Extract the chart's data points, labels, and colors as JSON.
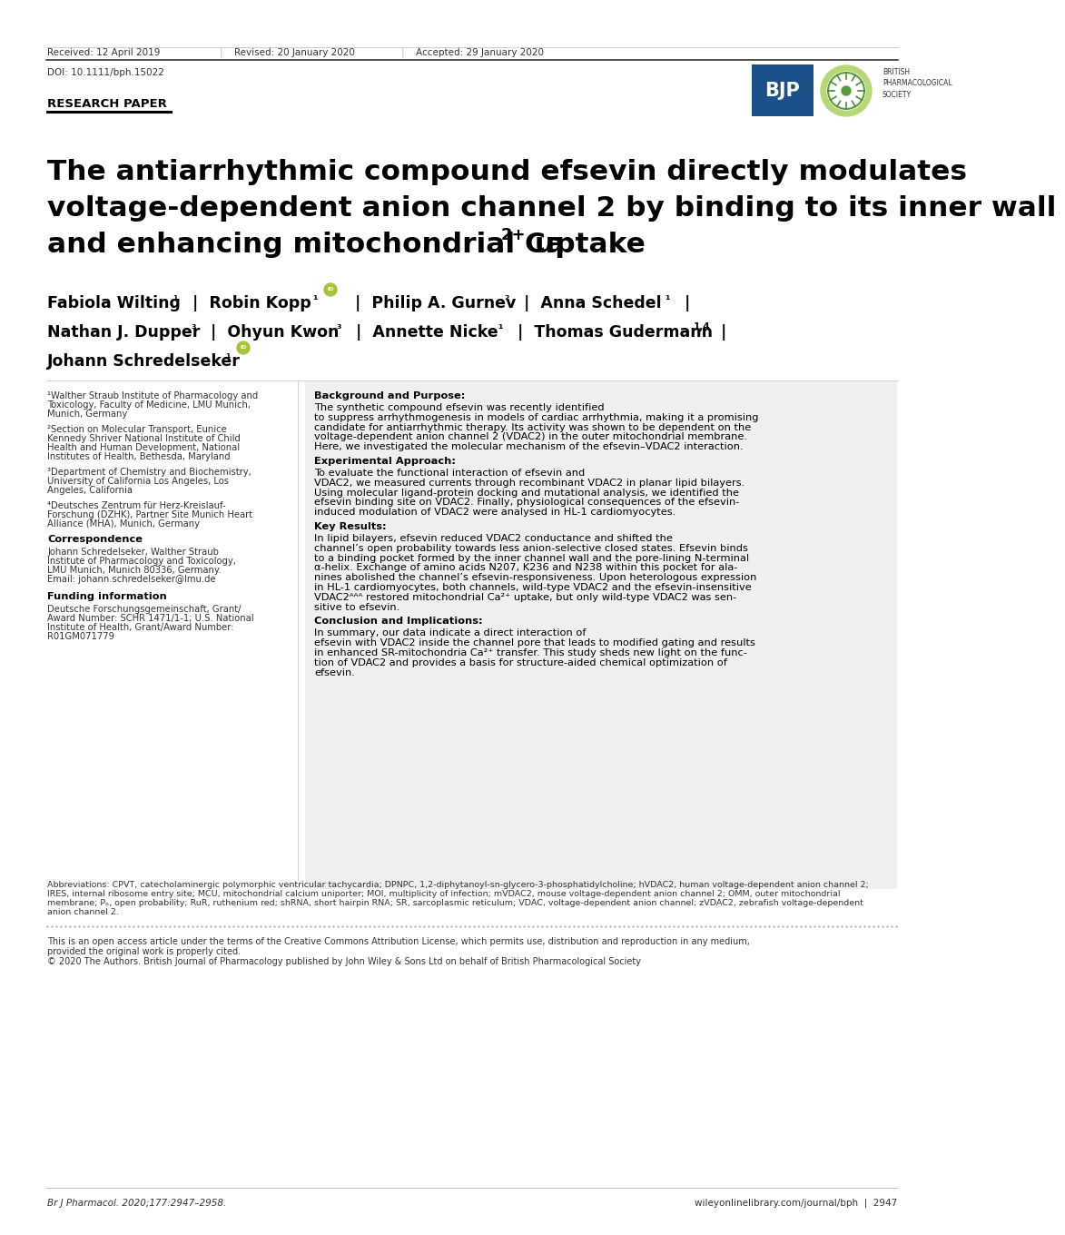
{
  "bg_color": "#ffffff",
  "doi": "DOI: 10.1111/bph.15022",
  "section_label": "RESEARCH PAPER",
  "title_line1": "The antiarrhythmic compound efsevin directly modulates",
  "title_line2": "voltage-dependent anion channel 2 by binding to its inner wall",
  "title_line3_main": "and enhancing mitochondrial Ca",
  "title_line3_super": "2+",
  "title_line3_after": " uptake",
  "affil1": "¹Walther Straub Institute of Pharmacology and\nToxicology, Faculty of Medicine, LMU Munich,\nMunich, Germany",
  "affil2": "²Section on Molecular Transport, Eunice\nKennedy Shriver National Institute of Child\nHealth and Human Development, National\nInstitutes of Health, Bethesda, Maryland",
  "affil3": "³Department of Chemistry and Biochemistry,\nUniversity of California Los Angeles, Los\nAngeles, California",
  "affil4": "⁴Deutsches Zentrum für Herz-Kreislauf-\nForschung (DZHK), Partner Site Munich Heart\nAlliance (MHA), Munich, Germany",
  "corr_title": "Correspondence",
  "corr_text": "Johann Schredelseker, Walther Straub\nInstitute of Pharmacology and Toxicology,\nLMU Munich, Munich 80336, Germany.\nEmail: johann.schredelseker@lmu.de",
  "fund_title": "Funding information",
  "fund_text": "Deutsche Forschungsgemeinschaft, Grant/\nAward Number: SCHR 1471/1-1; U.S. National\nInstitute of Health, Grant/Award Number:\nR01GM071779",
  "abstract_bg": "#efefef",
  "bp_bold": "Background and Purpose:",
  "bp_lines": [
    "The synthetic compound efsevin was recently identified",
    "to suppress arrhythmogenesis in models of cardiac arrhythmia, making it a promising",
    "candidate for antiarrhythmic therapy. Its activity was shown to be dependent on the",
    "voltage-dependent anion channel 2 (VDAC2) in the outer mitochondrial membrane.",
    "Here, we investigated the molecular mechanism of the efsevin–VDAC2 interaction."
  ],
  "ea_bold": "Experimental Approach:",
  "ea_lines": [
    "To evaluate the functional interaction of efsevin and",
    "VDAC2, we measured currents through recombinant VDAC2 in planar lipid bilayers.",
    "Using molecular ligand-protein docking and mutational analysis, we identified the",
    "efsevin binding site on VDAC2. Finally, physiological consequences of the efsevin-",
    "induced modulation of VDAC2 were analysed in HL-1 cardiomyocytes."
  ],
  "kr_bold": "Key Results:",
  "kr_lines": [
    "In lipid bilayers, efsevin reduced VDAC2 conductance and shifted the",
    "channel’s open probability towards less anion-selective closed states. Efsevin binds",
    "to a binding pocket formed by the inner channel wall and the pore-lining N-terminal",
    "α-helix. Exchange of amino acids N207, K236 and N238 within this pocket for ala-",
    "nines abolished the channel’s efsevin-responsiveness. Upon heterologous expression",
    "in HL-1 cardiomyocytes, both channels, wild-type VDAC2 and the efsevin-insensitive",
    "VDAC2ᴬᴬᴬ restored mitochondrial Ca²⁺ uptake, but only wild-type VDAC2 was sen-",
    "sitive to efsevin."
  ],
  "ci_bold": "Conclusion and Implications:",
  "ci_lines": [
    "In summary, our data indicate a direct interaction of",
    "efsevin with VDAC2 inside the channel pore that leads to modified gating and results",
    "in enhanced SR-mitochondria Ca²⁺ transfer. This study sheds new light on the func-",
    "tion of VDAC2 and provides a basis for structure-aided chemical optimization of",
    "efsevin."
  ],
  "abbrev_lines": [
    "Abbreviations: CPVT, catecholaminergic polymorphic ventricular tachycardia; DPNPC, 1,2-diphytanoyl-sn-glycero-3-phosphatidylcholine; hVDAC2, human voltage-dependent anion channel 2;",
    "IRES, internal ribosome entry site; MCU, mitochondrial calcium uniporter; MOI, multiplicity of infection; mVDAC2, mouse voltage-dependent anion channel 2; OMM, outer mitochondrial",
    "membrane; Pₒ, open probability; RuR, ruthenium red; shRNA, short hairpin RNA; SR, sarcoplasmic reticulum; VDAC, voltage-dependent anion channel; zVDAC2, zebrafish voltage-dependent",
    "anion channel 2."
  ],
  "open_access_text": "This is an open access article under the terms of the Creative Commons Attribution License, which permits use, distribution and reproduction in any medium,",
  "open_access_text2": "provided the original work is properly cited.",
  "copyright_text": "© 2020 The Authors. British Journal of Pharmacology published by John Wiley & Sons Ltd on behalf of British Pharmacological Society",
  "footer_left": "Br J Pharmacol. 2020;177:2947–2958.",
  "footer_right": "wileyonlinelibrary.com/journal/bph  |  2947"
}
